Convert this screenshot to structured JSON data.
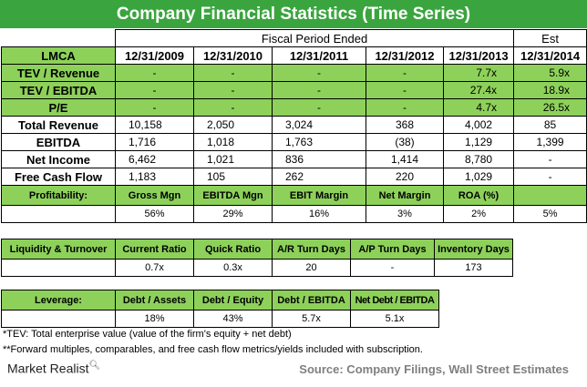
{
  "title": "Company Financial Statistics (Time Series)",
  "header": {
    "ticker": "LMCA",
    "fiscal_period_label": "Fiscal Period Ended",
    "est_label": "Est",
    "periods": [
      "12/31/2009",
      "12/31/2010",
      "12/31/2011",
      "12/31/2012",
      "12/31/2013",
      "12/31/2014"
    ]
  },
  "multiples": [
    {
      "label": "TEV / Revenue",
      "values": [
        "-",
        "-",
        "-",
        "-",
        "7.7x",
        "5.9x"
      ]
    },
    {
      "label": "TEV / EBITDA",
      "values": [
        "-",
        "-",
        "-",
        "-",
        "27.4x",
        "18.9x"
      ]
    },
    {
      "label": "P/E",
      "values": [
        "-",
        "-",
        "-",
        "-",
        "4.7x",
        "26.5x"
      ]
    }
  ],
  "financials": [
    {
      "label": "Total Revenue",
      "values": [
        "10,158",
        "2,050",
        "3,024",
        "368",
        "4,002",
        "85"
      ]
    },
    {
      "label": "EBITDA",
      "values": [
        "1,716",
        "1,018",
        "1,763",
        "(38)",
        "1,129",
        "1,399"
      ]
    },
    {
      "label": "Net Income",
      "values": [
        "6,462",
        "1,021",
        "836",
        "1,414",
        "8,780",
        "-"
      ]
    },
    {
      "label": "Free Cash Flow",
      "values": [
        "1,183",
        "105",
        "262",
        "220",
        "1,029",
        "-"
      ]
    }
  ],
  "profitability": {
    "label": "Profitability:",
    "headers": [
      "Gross Mgn",
      "EBITDA Mgn",
      "EBIT Margin",
      "Net Margin",
      "ROA (%)",
      ""
    ],
    "values": [
      "56%",
      "29%",
      "16%",
      "3%",
      "2%",
      "5%"
    ]
  },
  "liquidity": {
    "label": "Liquidity & Turnover",
    "headers": [
      "Current Ratio",
      "Quick Ratio",
      "A/R Turn Days",
      "A/P Turn Days",
      "Inventory Days"
    ],
    "values": [
      "0.7x",
      "0.3x",
      "20",
      "-",
      "173"
    ]
  },
  "leverage": {
    "label": "Leverage:",
    "headers": [
      "Debt / Assets",
      "Debt / Equity",
      "Debt / EBITDA",
      "Net Debt / EBITDA"
    ],
    "values": [
      "18%",
      "43%",
      "5.7x",
      "5.1x"
    ]
  },
  "notes": [
    "*TEV: Total enterprise value (value of the firm's equity + net debt)",
    "**Forward multiples, comparables, and free cash flow metrics/yields included with subscription."
  ],
  "footer": {
    "logo_text": "Market Realist",
    "source": "Source: Company Filings, Wall Street Estimates"
  },
  "colors": {
    "title_bg": "#3aa53e",
    "cell_green": "#8dd15a",
    "source_text": "#7f7f7f"
  }
}
